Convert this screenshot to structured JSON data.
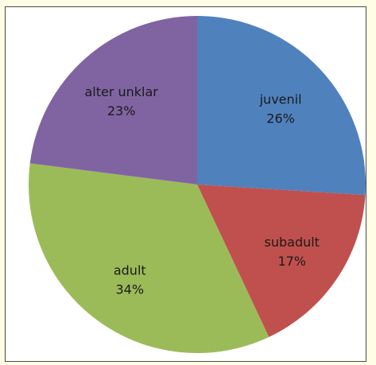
{
  "chart_data": {
    "type": "pie",
    "title": "",
    "start_angle_deg": 0,
    "direction": "clockwise",
    "legend": "none",
    "slices": [
      {
        "label": "juvenil",
        "value": 26,
        "value_label": "26%",
        "color": "#4f81bd"
      },
      {
        "label": "subadult",
        "value": 17,
        "value_label": "17%",
        "color": "#c0504d"
      },
      {
        "label": "adult",
        "value": 34,
        "value_label": "34%",
        "color": "#9bbb59"
      },
      {
        "label": "alter unklar",
        "value": 23,
        "value_label": "23%",
        "color": "#8064a2"
      }
    ]
  }
}
